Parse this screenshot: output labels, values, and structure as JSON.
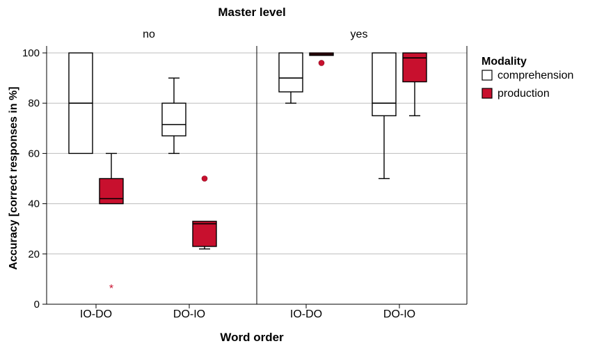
{
  "chart_data": {
    "type": "boxplot",
    "title": "Master level",
    "panels": [
      "no",
      "yes"
    ],
    "xlabel": "Word order",
    "ylabel": "Accuracy [correct responses in %]",
    "ylim": [
      0,
      100
    ],
    "yticks": [
      0,
      20,
      40,
      60,
      80,
      100
    ],
    "grid": true,
    "categories": [
      "IO-DO",
      "DO-IO"
    ],
    "legend": {
      "title": "Modality",
      "position": "right",
      "entries": [
        "comprehension",
        "production"
      ]
    },
    "colors": {
      "comprehension": "#ffffff",
      "production": "#c8102e"
    },
    "boxes": [
      {
        "panel": "no",
        "category": "IO-DO",
        "series": "comprehension",
        "min": 60,
        "q1": 60,
        "median": 80,
        "q3": 100,
        "max": 100,
        "outliers": [],
        "extremes": []
      },
      {
        "panel": "no",
        "category": "IO-DO",
        "series": "production",
        "min": 40,
        "q1": 40,
        "median": 42,
        "q3": 50,
        "max": 60,
        "outliers": [],
        "extremes": [
          7
        ]
      },
      {
        "panel": "no",
        "category": "DO-IO",
        "series": "comprehension",
        "min": 60,
        "q1": 67,
        "median": 71.5,
        "q3": 80,
        "max": 90,
        "outliers": [],
        "extremes": []
      },
      {
        "panel": "no",
        "category": "DO-IO",
        "series": "production",
        "min": 22,
        "q1": 23,
        "median": 32,
        "q3": 33,
        "max": 33,
        "outliers": [
          50
        ],
        "extremes": []
      },
      {
        "panel": "yes",
        "category": "IO-DO",
        "series": "comprehension",
        "min": 80,
        "q1": 84.5,
        "median": 90,
        "q3": 100,
        "max": 100,
        "outliers": [],
        "extremes": []
      },
      {
        "panel": "yes",
        "category": "IO-DO",
        "series": "production",
        "min": 99,
        "q1": 99,
        "median": 99.5,
        "q3": 100,
        "max": 100,
        "outliers": [
          96
        ],
        "extremes": []
      },
      {
        "panel": "yes",
        "category": "DO-IO",
        "series": "comprehension",
        "min": 50,
        "q1": 75,
        "median": 80,
        "q3": 100,
        "max": 100,
        "outliers": [],
        "extremes": []
      },
      {
        "panel": "yes",
        "category": "DO-IO",
        "series": "production",
        "min": 75,
        "q1": 88.5,
        "median": 98,
        "q3": 100,
        "max": 100,
        "outliers": [],
        "extremes": []
      }
    ]
  }
}
